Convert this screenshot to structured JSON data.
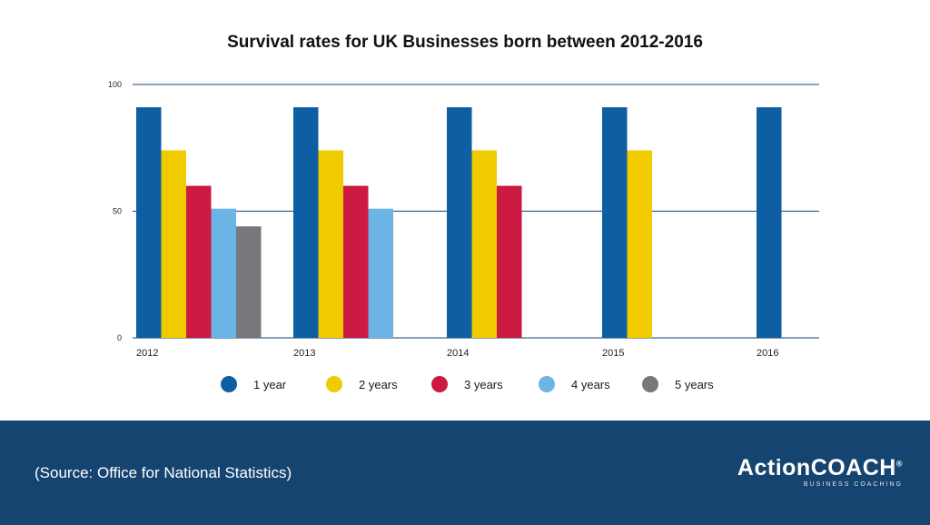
{
  "title": "Survival rates for UK Businesses born between 2012-2016",
  "chart_data": {
    "type": "bar",
    "title": "Survival rates for UK Businesses born between 2012-2016",
    "categories": [
      "2012",
      "2013",
      "2014",
      "2015",
      "2016"
    ],
    "ylim": [
      0,
      100
    ],
    "yticks": [
      0,
      50,
      100
    ],
    "ytick_labels": [
      "0",
      "50",
      "100"
    ],
    "xlabel": "",
    "ylabel": "",
    "legend_position": "bottom",
    "series": [
      {
        "name": "1 year",
        "color": "#0d5ea3",
        "values": [
          91,
          91,
          91,
          91,
          91
        ]
      },
      {
        "name": "2 years",
        "color": "#f0cb00",
        "values": [
          74,
          74,
          74,
          74,
          null
        ]
      },
      {
        "name": "3 years",
        "color": "#cc1a42",
        "values": [
          60,
          60,
          60,
          null,
          null
        ]
      },
      {
        "name": "4 years",
        "color": "#6cb3e6",
        "values": [
          51,
          51,
          null,
          null,
          null
        ]
      },
      {
        "name": "5 years",
        "color": "#77787b",
        "values": [
          44,
          null,
          null,
          null,
          null
        ]
      }
    ]
  },
  "footer": {
    "source": "(Source: Office for National Statistics)",
    "brand_name": "ActionCOACH",
    "brand_mark": "®",
    "brand_tagline": "BUSINESS COACHING"
  }
}
